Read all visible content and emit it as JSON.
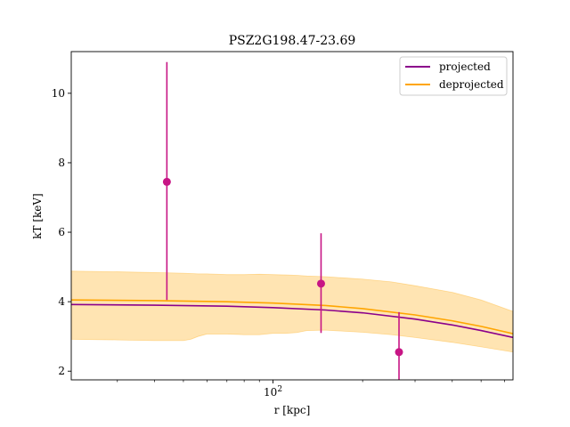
{
  "chart_data": {
    "type": "line",
    "title": "PSZ2G198.47-23.69",
    "xlabel": "r [kpc]",
    "ylabel": "kT [keV]",
    "x_scale": "log",
    "xlim": [
      21,
      640
    ],
    "ylim": [
      1.75,
      11.2
    ],
    "grid": false,
    "legend_position": "top-right",
    "x_ticks": [
      {
        "value": 100,
        "base": "10",
        "exp": "2"
      }
    ],
    "x_minor_ticks": [
      30,
      40,
      50,
      60,
      70,
      80,
      90,
      200,
      300,
      400,
      500,
      600
    ],
    "y_ticks": [
      2,
      4,
      6,
      8,
      10
    ],
    "y_tick_labels": [
      "2",
      "4",
      "6",
      "8",
      "10"
    ],
    "colors": {
      "projected": "#8b008b",
      "deprojected": "#ffa500",
      "band": "#ffa500",
      "points": "#c71585"
    },
    "series": [
      {
        "name": "projected",
        "x": [
          21,
          40,
          70,
          100,
          150,
          200,
          300,
          400,
          500,
          640
        ],
        "y": [
          3.92,
          3.9,
          3.87,
          3.83,
          3.76,
          3.68,
          3.5,
          3.33,
          3.17,
          2.97
        ]
      },
      {
        "name": "deprojected",
        "x": [
          21,
          40,
          70,
          100,
          150,
          200,
          300,
          400,
          500,
          640
        ],
        "y": [
          4.05,
          4.03,
          4.0,
          3.96,
          3.89,
          3.8,
          3.62,
          3.45,
          3.29,
          3.08
        ]
      }
    ],
    "band": {
      "x": [
        21,
        30,
        40,
        50,
        53,
        56,
        60,
        70,
        80,
        90,
        100,
        110,
        120,
        130,
        150,
        200,
        250,
        300,
        400,
        500,
        640
      ],
      "lower": [
        2.92,
        2.9,
        2.88,
        2.88,
        2.92,
        3.0,
        3.07,
        3.07,
        3.05,
        3.05,
        3.09,
        3.09,
        3.11,
        3.17,
        3.18,
        3.12,
        3.05,
        2.97,
        2.83,
        2.7,
        2.55
      ],
      "upper": [
        4.88,
        4.86,
        4.84,
        4.82,
        4.81,
        4.8,
        4.8,
        4.78,
        4.78,
        4.79,
        4.78,
        4.77,
        4.76,
        4.74,
        4.72,
        4.65,
        4.57,
        4.46,
        4.27,
        4.05,
        3.72
      ]
    },
    "points": [
      {
        "x": 44,
        "y": 7.45,
        "yerr_low": 4.05,
        "yerr_high": 10.9
      },
      {
        "x": 145,
        "y": 4.52,
        "yerr_low": 3.1,
        "yerr_high": 5.97
      },
      {
        "x": 265,
        "y": 2.55,
        "yerr_low": 1.75,
        "yerr_high": 3.7
      }
    ]
  }
}
